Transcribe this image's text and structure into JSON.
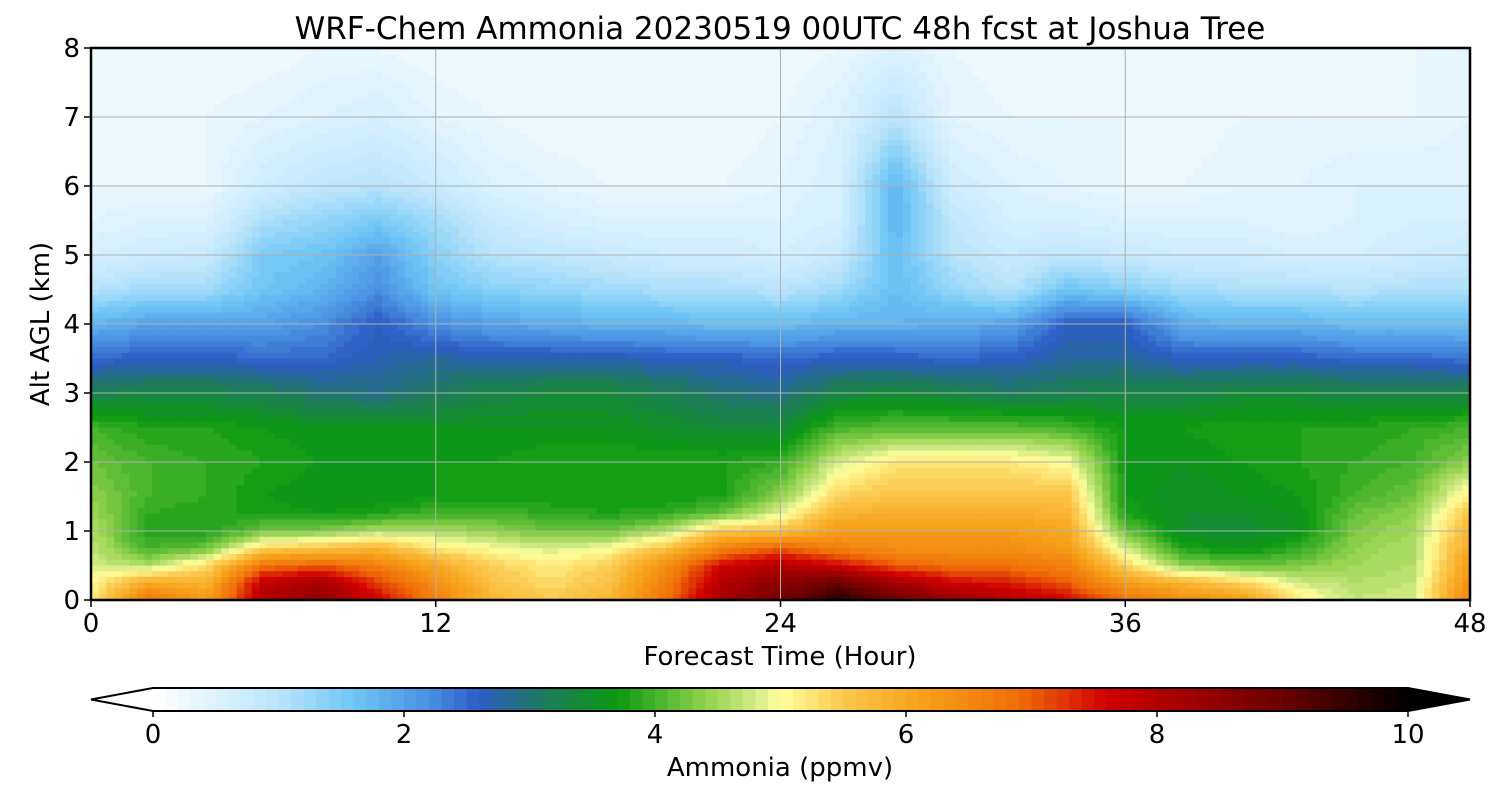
{
  "chart_data": {
    "type": "heatmap",
    "title": "WRF-Chem Ammonia  20230519 00UTC 48h fcst at Joshua Tree",
    "xlabel": "Forecast Time (Hour)",
    "ylabel": "Alt AGL (km)",
    "xlim": [
      0,
      48
    ],
    "ylim": [
      0,
      8
    ],
    "xticks": [
      0,
      12,
      24,
      36,
      48
    ],
    "yticks": [
      0,
      1,
      2,
      3,
      4,
      5,
      6,
      7,
      8
    ],
    "grid": true,
    "x": [
      0,
      2,
      4,
      6,
      8,
      10,
      12,
      14,
      16,
      18,
      20,
      22,
      24,
      26,
      28,
      30,
      32,
      34,
      36,
      38,
      40,
      42,
      44,
      46,
      48
    ],
    "y": [
      0,
      0.25,
      0.5,
      0.75,
      1.0,
      1.25,
      1.5,
      2.0,
      2.5,
      3.0,
      3.5,
      4.0,
      4.5,
      5.0,
      5.5,
      6.0,
      7.0,
      8.0
    ],
    "z": [
      [
        5.2,
        6.8,
        6.2,
        8.0,
        8.5,
        7.6,
        6.6,
        5.8,
        5.5,
        5.8,
        6.8,
        8.2,
        8.8,
        9.6,
        9.0,
        8.4,
        8.0,
        7.6,
        6.8,
        6.4,
        6.2,
        5.2,
        4.7,
        4.8,
        6.6
      ],
      [
        5.0,
        6.0,
        5.8,
        7.8,
        8.2,
        7.2,
        6.4,
        5.6,
        5.3,
        5.6,
        6.6,
        8.0,
        8.6,
        9.0,
        8.2,
        7.6,
        7.4,
        7.0,
        6.2,
        5.8,
        5.4,
        4.8,
        4.6,
        4.7,
        6.4
      ],
      [
        4.8,
        4.6,
        5.3,
        6.8,
        7.0,
        6.6,
        6.0,
        5.4,
        5.2,
        5.4,
        6.4,
        7.6,
        8.0,
        7.6,
        7.0,
        6.8,
        6.8,
        6.6,
        5.4,
        4.4,
        4.2,
        4.3,
        4.5,
        4.6,
        6.2
      ],
      [
        4.7,
        4.0,
        4.2,
        5.4,
        5.6,
        5.8,
        5.2,
        5.0,
        4.8,
        5.0,
        5.6,
        6.6,
        7.0,
        6.6,
        6.4,
        6.4,
        6.4,
        6.2,
        4.8,
        3.8,
        3.6,
        3.9,
        4.4,
        4.6,
        6.0
      ],
      [
        4.6,
        3.8,
        3.8,
        4.2,
        4.3,
        4.6,
        4.6,
        4.4,
        4.2,
        4.2,
        4.6,
        5.6,
        5.6,
        6.2,
        6.2,
        6.2,
        6.2,
        6.0,
        4.2,
        3.5,
        3.4,
        3.6,
        4.3,
        4.5,
        5.8
      ],
      [
        4.5,
        3.9,
        3.8,
        3.8,
        3.7,
        3.8,
        4.0,
        4.0,
        3.9,
        3.8,
        3.9,
        4.2,
        4.9,
        5.8,
        5.9,
        5.9,
        5.9,
        5.8,
        3.8,
        3.5,
        3.5,
        3.6,
        4.2,
        4.4,
        5.6
      ],
      [
        4.4,
        4.0,
        3.9,
        3.7,
        3.6,
        3.6,
        3.7,
        3.7,
        3.7,
        3.7,
        3.7,
        3.8,
        4.4,
        5.4,
        5.6,
        5.6,
        5.6,
        5.6,
        3.7,
        3.5,
        3.6,
        3.7,
        4.0,
        4.2,
        5.2
      ],
      [
        4.2,
        4.0,
        3.9,
        3.8,
        3.7,
        3.7,
        3.7,
        3.7,
        3.8,
        3.8,
        3.8,
        3.8,
        3.9,
        4.8,
        5.2,
        5.2,
        5.2,
        5.0,
        3.7,
        3.6,
        3.7,
        3.8,
        3.9,
        4.0,
        4.4
      ],
      [
        4.0,
        3.8,
        3.8,
        3.7,
        3.6,
        3.6,
        3.6,
        3.6,
        3.6,
        3.6,
        3.5,
        3.4,
        3.4,
        4.0,
        4.1,
        4.1,
        4.1,
        4.0,
        3.7,
        3.7,
        3.8,
        3.8,
        3.8,
        3.9,
        4.0
      ],
      [
        3.2,
        3.3,
        3.3,
        3.2,
        3.0,
        2.9,
        3.1,
        3.3,
        3.4,
        3.4,
        3.2,
        3.0,
        2.9,
        3.3,
        3.4,
        3.3,
        3.1,
        3.2,
        3.3,
        3.3,
        3.4,
        3.4,
        3.3,
        3.3,
        3.3
      ],
      [
        2.5,
        2.6,
        2.6,
        2.5,
        2.5,
        2.7,
        2.8,
        2.7,
        2.7,
        2.7,
        2.6,
        2.6,
        2.5,
        2.6,
        2.6,
        2.5,
        2.6,
        2.8,
        2.8,
        2.6,
        2.6,
        2.6,
        2.5,
        2.5,
        2.4
      ],
      [
        1.8,
        2.0,
        2.0,
        2.0,
        2.2,
        2.6,
        2.2,
        2.0,
        1.9,
        1.8,
        1.8,
        1.7,
        1.7,
        1.8,
        1.8,
        1.9,
        2.0,
        2.6,
        2.6,
        1.9,
        1.8,
        1.8,
        1.7,
        1.7,
        1.7
      ],
      [
        1.0,
        1.2,
        1.2,
        1.6,
        1.8,
        2.2,
        1.6,
        1.4,
        1.3,
        1.2,
        1.1,
        1.1,
        1.0,
        1.2,
        1.7,
        1.3,
        1.0,
        1.6,
        1.4,
        1.2,
        1.1,
        1.1,
        1.0,
        1.1,
        1.1
      ],
      [
        0.6,
        0.7,
        0.8,
        1.5,
        1.6,
        2.0,
        1.4,
        1.0,
        0.9,
        0.8,
        0.7,
        0.7,
        0.6,
        0.8,
        1.7,
        1.0,
        0.8,
        0.9,
        0.8,
        0.7,
        0.7,
        0.6,
        0.6,
        0.7,
        0.8
      ],
      [
        0.4,
        0.5,
        0.5,
        1.1,
        1.3,
        1.5,
        1.2,
        0.8,
        0.6,
        0.5,
        0.5,
        0.5,
        0.5,
        0.6,
        1.8,
        0.9,
        0.6,
        0.6,
        0.5,
        0.5,
        0.5,
        0.4,
        0.5,
        0.6,
        0.6
      ],
      [
        0.3,
        0.3,
        0.3,
        0.7,
        0.9,
        1.0,
        0.8,
        0.5,
        0.4,
        0.3,
        0.3,
        0.3,
        0.4,
        0.6,
        1.8,
        0.7,
        0.5,
        0.4,
        0.3,
        0.3,
        0.4,
        0.4,
        0.5,
        0.5,
        0.5
      ],
      [
        0.2,
        0.2,
        0.3,
        0.4,
        0.5,
        0.6,
        0.4,
        0.3,
        0.2,
        0.2,
        0.2,
        0.2,
        0.3,
        0.5,
        1.0,
        0.4,
        0.3,
        0.3,
        0.3,
        0.2,
        0.3,
        0.3,
        0.3,
        0.3,
        0.4
      ],
      [
        0.2,
        0.2,
        0.2,
        0.2,
        0.3,
        0.3,
        0.2,
        0.2,
        0.2,
        0.2,
        0.2,
        0.2,
        0.2,
        0.3,
        0.5,
        0.3,
        0.2,
        0.2,
        0.2,
        0.2,
        0.2,
        0.3,
        0.3,
        0.3,
        0.3
      ]
    ],
    "colorbar": {
      "label": "Ammonia  (ppmv)",
      "min": 0,
      "max": 10,
      "ticks": [
        0,
        2,
        4,
        6,
        8,
        10
      ],
      "extend": "both",
      "orientation": "horizontal",
      "placement": "bottom",
      "levels": 100,
      "stops": [
        {
          "v": 0.0,
          "c": "#ffffff"
        },
        {
          "v": 1.0,
          "c": "#b9e5fb"
        },
        {
          "v": 1.6,
          "c": "#6fc5f5"
        },
        {
          "v": 2.2,
          "c": "#4a90e2"
        },
        {
          "v": 2.6,
          "c": "#2c5cc5"
        },
        {
          "v": 3.1,
          "c": "#1f7a5f"
        },
        {
          "v": 3.7,
          "c": "#0b9a12"
        },
        {
          "v": 4.4,
          "c": "#8fd24a"
        },
        {
          "v": 4.8,
          "c": "#d4ea86"
        },
        {
          "v": 5.0,
          "c": "#ffff9a"
        },
        {
          "v": 5.5,
          "c": "#fbc84e"
        },
        {
          "v": 6.1,
          "c": "#f7a21a"
        },
        {
          "v": 6.9,
          "c": "#ef6d08"
        },
        {
          "v": 7.6,
          "c": "#d00000"
        },
        {
          "v": 9.0,
          "c": "#6a0000"
        },
        {
          "v": 10.0,
          "c": "#000000"
        }
      ]
    }
  }
}
